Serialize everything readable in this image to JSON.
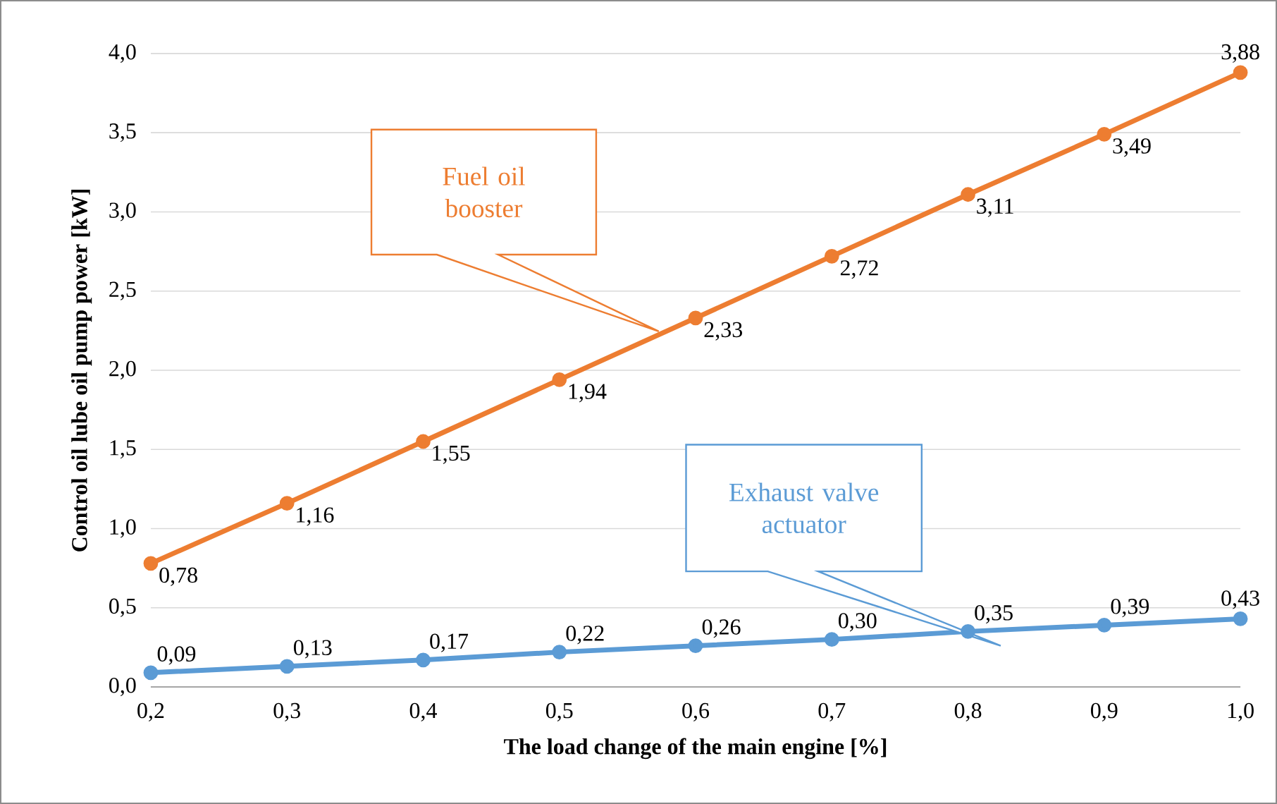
{
  "chart_data": {
    "type": "line",
    "xlabel": "The load change of the main engine [%]",
    "ylabel": "Control oil lube oil pump power [kW]",
    "x": [
      0.2,
      0.3,
      0.4,
      0.5,
      0.6,
      0.7,
      0.8,
      0.9,
      1.0
    ],
    "xlim": [
      0.2,
      1.0
    ],
    "ylim": [
      0,
      4.0
    ],
    "xticks": [
      {
        "value": 0.2,
        "label": "0,2"
      },
      {
        "value": 0.3,
        "label": "0,3"
      },
      {
        "value": 0.4,
        "label": "0,4"
      },
      {
        "value": 0.5,
        "label": "0,5"
      },
      {
        "value": 0.6,
        "label": "0,6"
      },
      {
        "value": 0.7,
        "label": "0,7"
      },
      {
        "value": 0.8,
        "label": "0,8"
      },
      {
        "value": 0.9,
        "label": "0,9"
      },
      {
        "value": 1.0,
        "label": "1,0"
      }
    ],
    "yticks": [
      {
        "value": 0,
        "label": "0,0"
      },
      {
        "value": 0.5,
        "label": "0,5"
      },
      {
        "value": 1.0,
        "label": "1,0"
      },
      {
        "value": 1.5,
        "label": "1,5"
      },
      {
        "value": 2.0,
        "label": "2,0"
      },
      {
        "value": 2.5,
        "label": "2,5"
      },
      {
        "value": 3.0,
        "label": "3,0"
      },
      {
        "value": 3.5,
        "label": "3,5"
      },
      {
        "value": 4.0,
        "label": "4,0"
      }
    ],
    "grid": "y",
    "marker": "circle",
    "series": [
      {
        "name": "Fuel oil booster",
        "color": "#ed7d31",
        "values": [
          0.78,
          1.16,
          1.55,
          1.94,
          2.33,
          2.72,
          3.11,
          3.49,
          3.88
        ],
        "value_labels": [
          "0,78",
          "1,16",
          "1,55",
          "1,94",
          "2,33",
          "2,72",
          "3,11",
          "3,49",
          "3,88"
        ]
      },
      {
        "name": "Exhaust valve actuator",
        "color": "#5b9bd5",
        "values": [
          0.09,
          0.13,
          0.17,
          0.22,
          0.26,
          0.3,
          0.35,
          0.39,
          0.43
        ],
        "value_labels": [
          "0,09",
          "0,13",
          "0,17",
          "0,22",
          "0,26",
          "0,30",
          "0,35",
          "0,39",
          "0,43"
        ]
      }
    ]
  }
}
